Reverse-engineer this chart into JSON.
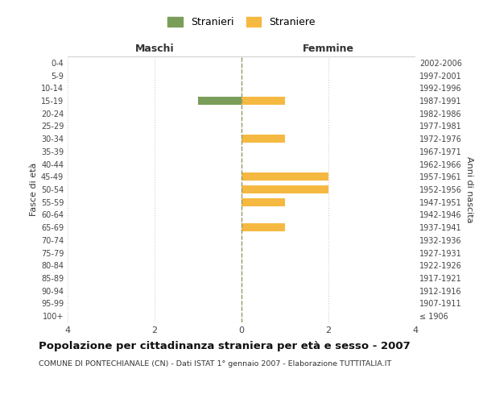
{
  "age_groups": [
    "100+",
    "95-99",
    "90-94",
    "85-89",
    "80-84",
    "75-79",
    "70-74",
    "65-69",
    "60-64",
    "55-59",
    "50-54",
    "45-49",
    "40-44",
    "35-39",
    "30-34",
    "25-29",
    "20-24",
    "15-19",
    "10-14",
    "5-9",
    "0-4"
  ],
  "birth_years": [
    "≤ 1906",
    "1907-1911",
    "1912-1916",
    "1917-1921",
    "1922-1926",
    "1927-1931",
    "1932-1936",
    "1937-1941",
    "1942-1946",
    "1947-1951",
    "1952-1956",
    "1957-1961",
    "1962-1966",
    "1967-1971",
    "1972-1976",
    "1977-1981",
    "1982-1986",
    "1987-1991",
    "1992-1996",
    "1997-2001",
    "2002-2006"
  ],
  "males": [
    0,
    0,
    0,
    0,
    0,
    0,
    0,
    0,
    0,
    0,
    0,
    0,
    0,
    0,
    0,
    0,
    0,
    1,
    0,
    0,
    0
  ],
  "females": [
    0,
    0,
    0,
    0,
    0,
    0,
    0,
    1,
    0,
    1,
    2,
    2,
    0,
    0,
    1,
    0,
    0,
    1,
    0,
    0,
    0
  ],
  "male_color": "#7a9e59",
  "female_color": "#f5b942",
  "xlim": 4,
  "xlabel_left": "Maschi",
  "xlabel_right": "Femmine",
  "ylabel_left": "Fasce di età",
  "ylabel_right": "Anni di nascita",
  "title": "Popolazione per cittadinanza straniera per età e sesso - 2007",
  "subtitle": "COMUNE DI PONTECHIANALE (CN) - Dati ISTAT 1° gennaio 2007 - Elaborazione TUTTITALIA.IT",
  "legend_stranieri": "Stranieri",
  "legend_straniere": "Straniere",
  "bg_color": "#ffffff",
  "grid_color": "#d0d0d0",
  "dashed_line_color": "#999966",
  "tick_color": "#444444"
}
